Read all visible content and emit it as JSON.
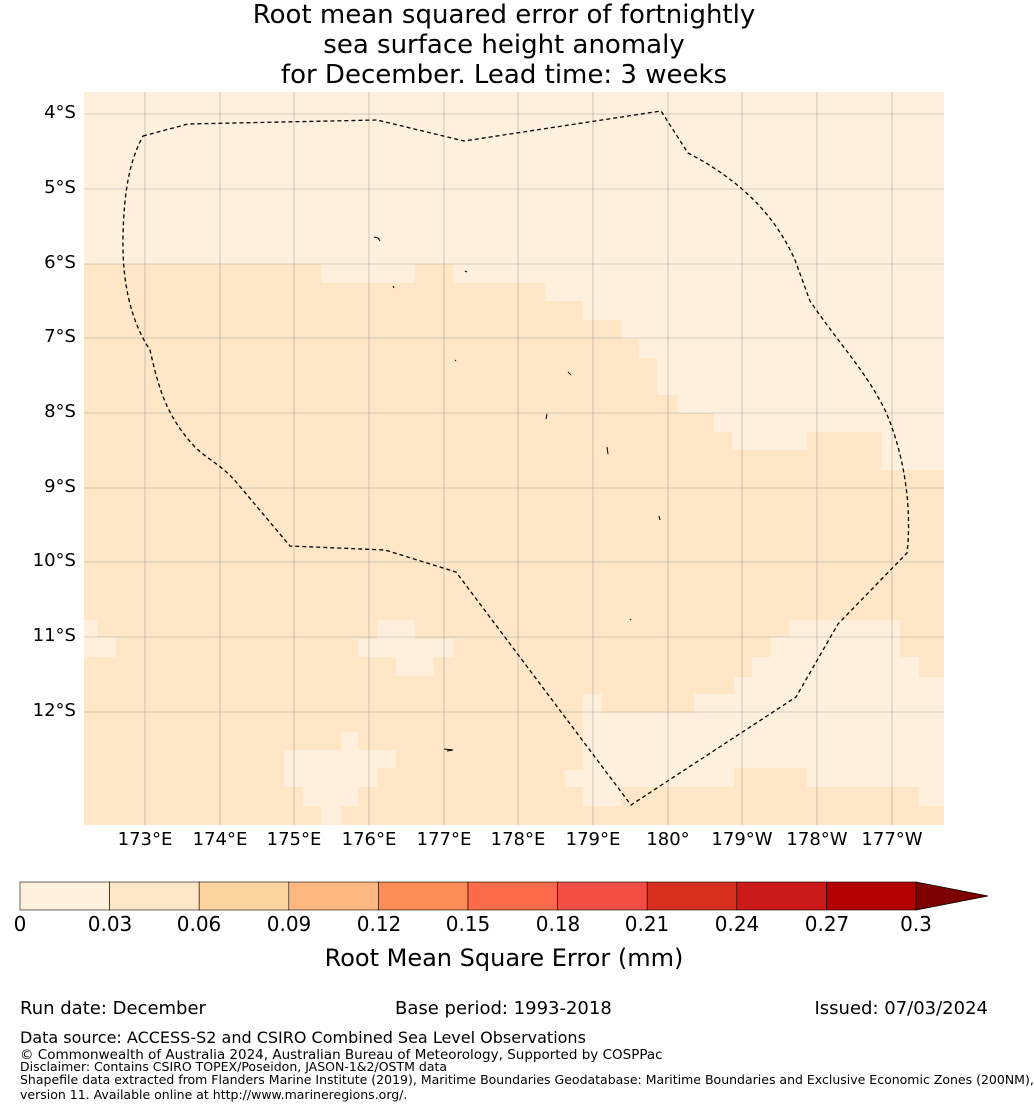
{
  "title_lines": [
    "Root mean squared error of fortnightly",
    "sea surface height anomaly",
    "for December. Lead time: 3 weeks"
  ],
  "map": {
    "lat_labels": [
      "4°S",
      "5°S",
      "6°S",
      "7°S",
      "8°S",
      "9°S",
      "10°S",
      "11°S",
      "12°S"
    ],
    "lon_labels": [
      "173°E",
      "174°E",
      "175°E",
      "176°E",
      "177°E",
      "178°E",
      "179°E",
      "180°",
      "179°W",
      "178°W",
      "177°W"
    ],
    "colors": {
      "light": "#fff0de",
      "medium": "#fee6c6",
      "boundary": "#000000",
      "grid": "#999999"
    }
  },
  "colorbar": {
    "label": "Root Mean Square Error (mm)",
    "ticks": [
      "0",
      "0.03",
      "0.06",
      "0.09",
      "0.12",
      "0.15",
      "0.18",
      "0.21",
      "0.24",
      "0.27",
      "0.3"
    ],
    "colors": [
      "#fff0de",
      "#fee6c6",
      "#fdd49e",
      "#fdb882",
      "#fc8d59",
      "#fb6b4b",
      "#f34e42",
      "#d7301f",
      "#cb1a1a",
      "#b30000"
    ],
    "extend_color": "#7f0000"
  },
  "footer": {
    "run_date": "Run date: December",
    "base_period": "Base period: 1993-2018",
    "issued": "Issued: 07/03/2024",
    "data_source": "Data source: ACCESS-S2 and CSIRO Combined Sea Level Observations",
    "copyright": "© Commonwealth of Australia 2024, Australian Bureau of Meteorology, Supported by COSPPac",
    "disclaimer": "Disclaimer: Contains CSIRO TOPEX/Poseidon, JASON-1&2/OSTM data",
    "shapefile_1": "Shapefile data extracted from Flanders Marine Institute (2019), Maritime Boundaries Geodatabase: Maritime Boundaries and Exclusive Economic Zones (200NM),",
    "shapefile_2": "version 11. Available online at http://www.marineregions.org/."
  }
}
